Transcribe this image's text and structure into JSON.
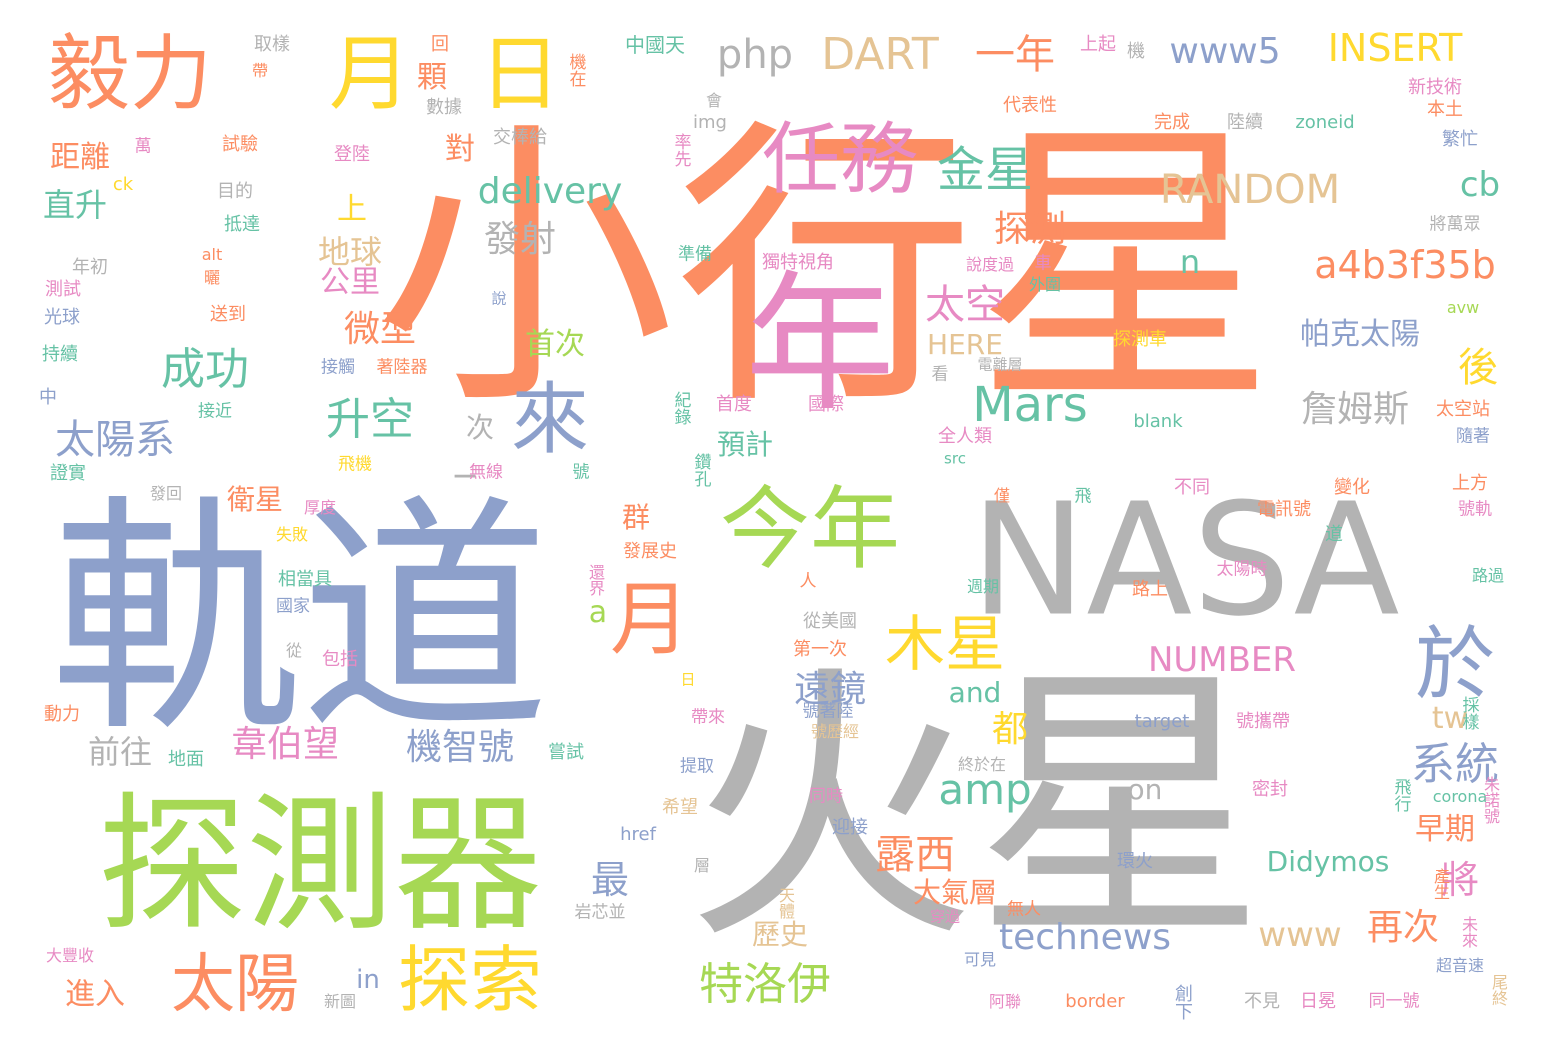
{
  "palette": {
    "orange": "#fc8d62",
    "blue": "#8da0cb",
    "green": "#a6d854",
    "gray": "#b3b3b3",
    "teal": "#66c2a5",
    "pink": "#e78ac3",
    "yellow": "#ffd92f",
    "tan": "#e5c494"
  },
  "words": [
    {
      "t": "小行星",
      "c": "orange",
      "w": "xl"
    },
    {
      "t": "軌道",
      "c": "blue",
      "w": "xl"
    },
    {
      "t": "火星",
      "c": "gray",
      "w": "xl"
    },
    {
      "t": "NASA",
      "c": "gray",
      "w": "xl"
    },
    {
      "t": "探測器",
      "c": "green",
      "w": "l"
    },
    {
      "t": "年",
      "c": "pink",
      "w": "l"
    },
    {
      "t": "今年",
      "c": "green",
      "w": "l"
    },
    {
      "t": "任務",
      "c": "pink",
      "w": "l"
    },
    {
      "t": "毅力",
      "c": "orange",
      "w": "l"
    },
    {
      "t": "日",
      "c": "yellow",
      "w": "l"
    },
    {
      "t": "月",
      "c": "yellow",
      "w": "l"
    },
    {
      "t": "月",
      "c": "orange",
      "w": "l"
    },
    {
      "t": "來",
      "c": "blue",
      "w": "l"
    },
    {
      "t": "探索",
      "c": "yellow",
      "w": "l"
    },
    {
      "t": "太陽",
      "c": "orange",
      "w": "l"
    },
    {
      "t": "木星",
      "c": "yellow",
      "w": "l"
    },
    {
      "t": "於",
      "c": "blue",
      "w": "l"
    },
    {
      "t": "Mars",
      "c": "teal",
      "w": "m"
    },
    {
      "t": "金星",
      "c": "teal",
      "w": "m"
    },
    {
      "t": "一年",
      "c": "orange",
      "w": "m"
    },
    {
      "t": "DART",
      "c": "tan",
      "w": "m"
    },
    {
      "t": "php",
      "c": "gray",
      "w": "m"
    },
    {
      "t": "www5",
      "c": "blue",
      "w": "m"
    },
    {
      "t": "INSERT",
      "c": "yellow",
      "w": "m"
    },
    {
      "t": "RANDOM",
      "c": "tan",
      "w": "m"
    },
    {
      "t": "a4b3f35b",
      "c": "orange",
      "w": "m"
    },
    {
      "t": "delivery",
      "c": "teal",
      "w": "m"
    },
    {
      "t": "發射",
      "c": "gray",
      "w": "m"
    },
    {
      "t": "成功",
      "c": "teal",
      "w": "m"
    },
    {
      "t": "太陽系",
      "c": "blue",
      "w": "m"
    },
    {
      "t": "升空",
      "c": "teal",
      "w": "m"
    },
    {
      "t": "微型",
      "c": "orange",
      "w": "m"
    },
    {
      "t": "太空",
      "c": "pink",
      "w": "m"
    },
    {
      "t": "探測",
      "c": "orange",
      "w": "m"
    },
    {
      "t": "詹姆斯",
      "c": "gray",
      "w": "m"
    },
    {
      "t": "帕克太陽",
      "c": "blue",
      "w": "m"
    },
    {
      "t": "特洛伊",
      "c": "green",
      "w": "m"
    },
    {
      "t": "露西",
      "c": "orange",
      "w": "m"
    },
    {
      "t": "遠鏡",
      "c": "blue",
      "w": "m"
    },
    {
      "t": "韋伯望",
      "c": "pink",
      "w": "m"
    },
    {
      "t": "機智號",
      "c": "blue",
      "w": "m"
    },
    {
      "t": "amp",
      "c": "teal",
      "w": "m"
    },
    {
      "t": "系統",
      "c": "blue",
      "w": "m"
    },
    {
      "t": "technews",
      "c": "blue",
      "w": "m"
    },
    {
      "t": "www",
      "c": "tan",
      "w": "m"
    },
    {
      "t": "再次",
      "c": "orange",
      "w": "m"
    },
    {
      "t": "NUMBER",
      "c": "pink",
      "w": "m"
    },
    {
      "t": "Didymos",
      "c": "teal",
      "w": "s"
    },
    {
      "t": "直升",
      "c": "teal",
      "w": "s"
    },
    {
      "t": "距離",
      "c": "orange",
      "w": "s"
    },
    {
      "t": "衛星",
      "c": "orange",
      "w": "s"
    },
    {
      "t": "前往",
      "c": "gray",
      "w": "s"
    },
    {
      "t": "進入",
      "c": "orange",
      "w": "s"
    },
    {
      "t": "後",
      "c": "yellow",
      "w": "s"
    },
    {
      "t": "將",
      "c": "pink",
      "w": "s"
    },
    {
      "t": "最",
      "c": "blue",
      "w": "s"
    },
    {
      "t": "都",
      "c": "yellow",
      "w": "s"
    },
    {
      "t": "早期",
      "c": "orange",
      "w": "s"
    },
    {
      "t": "大氣層",
      "c": "orange",
      "w": "s"
    },
    {
      "t": "歷史",
      "c": "tan",
      "w": "s"
    },
    {
      "t": "地球",
      "c": "tan",
      "w": "s"
    },
    {
      "t": "公里",
      "c": "pink",
      "w": "s"
    },
    {
      "t": "上",
      "c": "yellow",
      "w": "s"
    },
    {
      "t": "對",
      "c": "orange",
      "w": "s"
    },
    {
      "t": "顆",
      "c": "orange",
      "w": "s"
    },
    {
      "t": "首次",
      "c": "green",
      "w": "s"
    },
    {
      "t": "預計",
      "c": "teal",
      "w": "s"
    },
    {
      "t": "次",
      "c": "gray",
      "w": "s"
    },
    {
      "t": "群",
      "c": "orange",
      "w": "s"
    },
    {
      "t": "cb",
      "c": "teal",
      "w": "s"
    },
    {
      "t": "n",
      "c": "teal",
      "w": "s"
    },
    {
      "t": "a",
      "c": "green",
      "w": "s"
    },
    {
      "t": "tw",
      "c": "tan",
      "w": "s"
    },
    {
      "t": "and",
      "c": "teal",
      "w": "s"
    },
    {
      "t": "HERE",
      "c": "tan",
      "w": "s"
    },
    {
      "t": "in",
      "c": "blue",
      "w": "s"
    },
    {
      "t": "on",
      "c": "gray",
      "w": "s"
    },
    {
      "t": "_",
      "c": "gray",
      "w": "m"
    },
    {
      "t": "中國天",
      "c": "teal",
      "w": "xs"
    },
    {
      "t": "上起",
      "c": "pink",
      "w": "xs"
    },
    {
      "t": "機",
      "c": "gray",
      "w": "xs"
    },
    {
      "t": "取樣",
      "c": "gray",
      "w": "xs"
    },
    {
      "t": "回",
      "c": "orange",
      "w": "xs"
    },
    {
      "t": "機在",
      "c": "orange",
      "w": "xs"
    },
    {
      "t": "帶",
      "c": "orange",
      "w": "xs"
    },
    {
      "t": "數據",
      "c": "gray",
      "w": "xs"
    },
    {
      "t": "會",
      "c": "gray",
      "w": "xs"
    },
    {
      "t": "新技術",
      "c": "pink",
      "w": "xs"
    },
    {
      "t": "代表性",
      "c": "orange",
      "w": "xs"
    },
    {
      "t": "本土",
      "c": "orange",
      "w": "xs"
    },
    {
      "t": "img",
      "c": "gray",
      "w": "xs"
    },
    {
      "t": "完成",
      "c": "orange",
      "w": "xs"
    },
    {
      "t": "陸續",
      "c": "gray",
      "w": "xs"
    },
    {
      "t": "zoneid",
      "c": "teal",
      "w": "xs"
    },
    {
      "t": "繁忙",
      "c": "blue",
      "w": "xs"
    },
    {
      "t": "交棒給",
      "c": "gray",
      "w": "xs"
    },
    {
      "t": "率先",
      "c": "pink",
      "w": "xs"
    },
    {
      "t": "萬",
      "c": "pink",
      "w": "xs"
    },
    {
      "t": "試驗",
      "c": "orange",
      "w": "xs"
    },
    {
      "t": "登陸",
      "c": "pink",
      "w": "xs"
    },
    {
      "t": "ck",
      "c": "yellow",
      "w": "xs"
    },
    {
      "t": "目的",
      "c": "gray",
      "w": "xs"
    },
    {
      "t": "將萬眾",
      "c": "gray",
      "w": "xs"
    },
    {
      "t": "抵達",
      "c": "teal",
      "w": "xs"
    },
    {
      "t": "alt",
      "c": "orange",
      "w": "xs"
    },
    {
      "t": "年初",
      "c": "gray",
      "w": "xs"
    },
    {
      "t": "曬",
      "c": "orange",
      "w": "xs"
    },
    {
      "t": "測試",
      "c": "pink",
      "w": "xs"
    },
    {
      "t": "送到",
      "c": "orange",
      "w": "xs"
    },
    {
      "t": "光球",
      "c": "blue",
      "w": "xs"
    },
    {
      "t": "準備",
      "c": "teal",
      "w": "xs"
    },
    {
      "t": "獨特視角",
      "c": "pink",
      "w": "xs"
    },
    {
      "t": "說度過",
      "c": "pink",
      "w": "xs"
    },
    {
      "t": "車",
      "c": "pink",
      "w": "xs"
    },
    {
      "t": "外圍",
      "c": "teal",
      "w": "xs"
    },
    {
      "t": "說",
      "c": "blue",
      "w": "xs"
    },
    {
      "t": "avw",
      "c": "green",
      "w": "xs"
    },
    {
      "t": "持續",
      "c": "teal",
      "w": "xs"
    },
    {
      "t": "接觸",
      "c": "blue",
      "w": "xs"
    },
    {
      "t": "著陸器",
      "c": "orange",
      "w": "xs"
    },
    {
      "t": "電離層",
      "c": "gray",
      "w": "xs"
    },
    {
      "t": "探測車",
      "c": "yellow",
      "w": "xs"
    },
    {
      "t": "中",
      "c": "blue",
      "w": "xs"
    },
    {
      "t": "看",
      "c": "gray",
      "w": "xs"
    },
    {
      "t": "首度",
      "c": "pink",
      "w": "xs"
    },
    {
      "t": "國際",
      "c": "pink",
      "w": "xs"
    },
    {
      "t": "接近",
      "c": "teal",
      "w": "xs"
    },
    {
      "t": "紀錄",
      "c": "teal",
      "w": "xs"
    },
    {
      "t": "blank",
      "c": "teal",
      "w": "xs"
    },
    {
      "t": "太空站",
      "c": "orange",
      "w": "xs"
    },
    {
      "t": "全人類",
      "c": "pink",
      "w": "xs"
    },
    {
      "t": "隨著",
      "c": "blue",
      "w": "xs"
    },
    {
      "t": "src",
      "c": "teal",
      "w": "xs"
    },
    {
      "t": "證實",
      "c": "teal",
      "w": "xs"
    },
    {
      "t": "飛機",
      "c": "yellow",
      "w": "xs"
    },
    {
      "t": "無線",
      "c": "pink",
      "w": "xs"
    },
    {
      "t": "號",
      "c": "teal",
      "w": "xs"
    },
    {
      "t": "鑽孔",
      "c": "teal",
      "w": "xs"
    },
    {
      "t": "發回",
      "c": "gray",
      "w": "xs"
    },
    {
      "t": "厚度",
      "c": "pink",
      "w": "xs"
    },
    {
      "t": "僅",
      "c": "orange",
      "w": "xs"
    },
    {
      "t": "飛",
      "c": "teal",
      "w": "xs"
    },
    {
      "t": "不同",
      "c": "pink",
      "w": "xs"
    },
    {
      "t": "變化",
      "c": "orange",
      "w": "xs"
    },
    {
      "t": "上方",
      "c": "orange",
      "w": "xs"
    },
    {
      "t": "失敗",
      "c": "yellow",
      "w": "xs"
    },
    {
      "t": "電訊號",
      "c": "orange",
      "w": "xs"
    },
    {
      "t": "號軌",
      "c": "pink",
      "w": "xs"
    },
    {
      "t": "相當具",
      "c": "teal",
      "w": "xs"
    },
    {
      "t": "道",
      "c": "teal",
      "w": "xs"
    },
    {
      "t": "發展史",
      "c": "orange",
      "w": "xs"
    },
    {
      "t": "還界",
      "c": "pink",
      "w": "xs"
    },
    {
      "t": "人",
      "c": "orange",
      "w": "xs"
    },
    {
      "t": "週期",
      "c": "teal",
      "w": "xs"
    },
    {
      "t": "太陽時",
      "c": "pink",
      "w": "xs"
    },
    {
      "t": "國家",
      "c": "blue",
      "w": "xs"
    },
    {
      "t": "路上",
      "c": "orange",
      "w": "xs"
    },
    {
      "t": "路過",
      "c": "teal",
      "w": "xs"
    },
    {
      "t": "從美國",
      "c": "gray",
      "w": "xs"
    },
    {
      "t": "從",
      "c": "gray",
      "w": "xs"
    },
    {
      "t": "包括",
      "c": "pink",
      "w": "xs"
    },
    {
      "t": "第一次",
      "c": "orange",
      "w": "xs"
    },
    {
      "t": "日",
      "c": "yellow",
      "w": "xs"
    },
    {
      "t": "動力",
      "c": "orange",
      "w": "xs"
    },
    {
      "t": "target",
      "c": "blue",
      "w": "xs"
    },
    {
      "t": "號攜帶",
      "c": "pink",
      "w": "xs"
    },
    {
      "t": "帶來",
      "c": "pink",
      "w": "xs"
    },
    {
      "t": "號著陸",
      "c": "blue",
      "w": "xs"
    },
    {
      "t": "號歷經",
      "c": "tan",
      "w": "xs"
    },
    {
      "t": "採樣",
      "c": "teal",
      "w": "xs"
    },
    {
      "t": "地面",
      "c": "teal",
      "w": "xs"
    },
    {
      "t": "嘗試",
      "c": "teal",
      "w": "xs"
    },
    {
      "t": "提取",
      "c": "blue",
      "w": "xs"
    },
    {
      "t": "終於在",
      "c": "gray",
      "w": "xs"
    },
    {
      "t": "同時",
      "c": "pink",
      "w": "xs"
    },
    {
      "t": "密封",
      "c": "pink",
      "w": "xs"
    },
    {
      "t": "飛行",
      "c": "teal",
      "w": "xs"
    },
    {
      "t": "corona",
      "c": "teal",
      "w": "xs"
    },
    {
      "t": "朱諾號",
      "c": "pink",
      "w": "xs"
    },
    {
      "t": "希望",
      "c": "tan",
      "w": "xs"
    },
    {
      "t": "迎接",
      "c": "blue",
      "w": "xs"
    },
    {
      "t": "href",
      "c": "blue",
      "w": "xs"
    },
    {
      "t": "層",
      "c": "gray",
      "w": "xs"
    },
    {
      "t": "環火",
      "c": "blue",
      "w": "xs"
    },
    {
      "t": "產生",
      "c": "orange",
      "w": "xs"
    },
    {
      "t": "天體",
      "c": "tan",
      "w": "xs"
    },
    {
      "t": "無人",
      "c": "orange",
      "w": "xs"
    },
    {
      "t": "岩芯並",
      "c": "gray",
      "w": "xs"
    },
    {
      "t": "穿過",
      "c": "pink",
      "w": "xs"
    },
    {
      "t": "未來",
      "c": "pink",
      "w": "xs"
    },
    {
      "t": "大豐收",
      "c": "pink",
      "w": "xs"
    },
    {
      "t": "可見",
      "c": "blue",
      "w": "xs"
    },
    {
      "t": "超音速",
      "c": "blue",
      "w": "xs"
    },
    {
      "t": "新圖",
      "c": "gray",
      "w": "xs"
    },
    {
      "t": "阿聯",
      "c": "pink",
      "w": "xs"
    },
    {
      "t": "border",
      "c": "orange",
      "w": "xs"
    },
    {
      "t": "創下",
      "c": "blue",
      "w": "xs"
    },
    {
      "t": "不見",
      "c": "gray",
      "w": "xs"
    },
    {
      "t": "日冕",
      "c": "pink",
      "w": "xs"
    },
    {
      "t": "同一號",
      "c": "pink",
      "w": "xs"
    },
    {
      "t": "尾終",
      "c": "tan",
      "w": "xs"
    }
  ]
}
